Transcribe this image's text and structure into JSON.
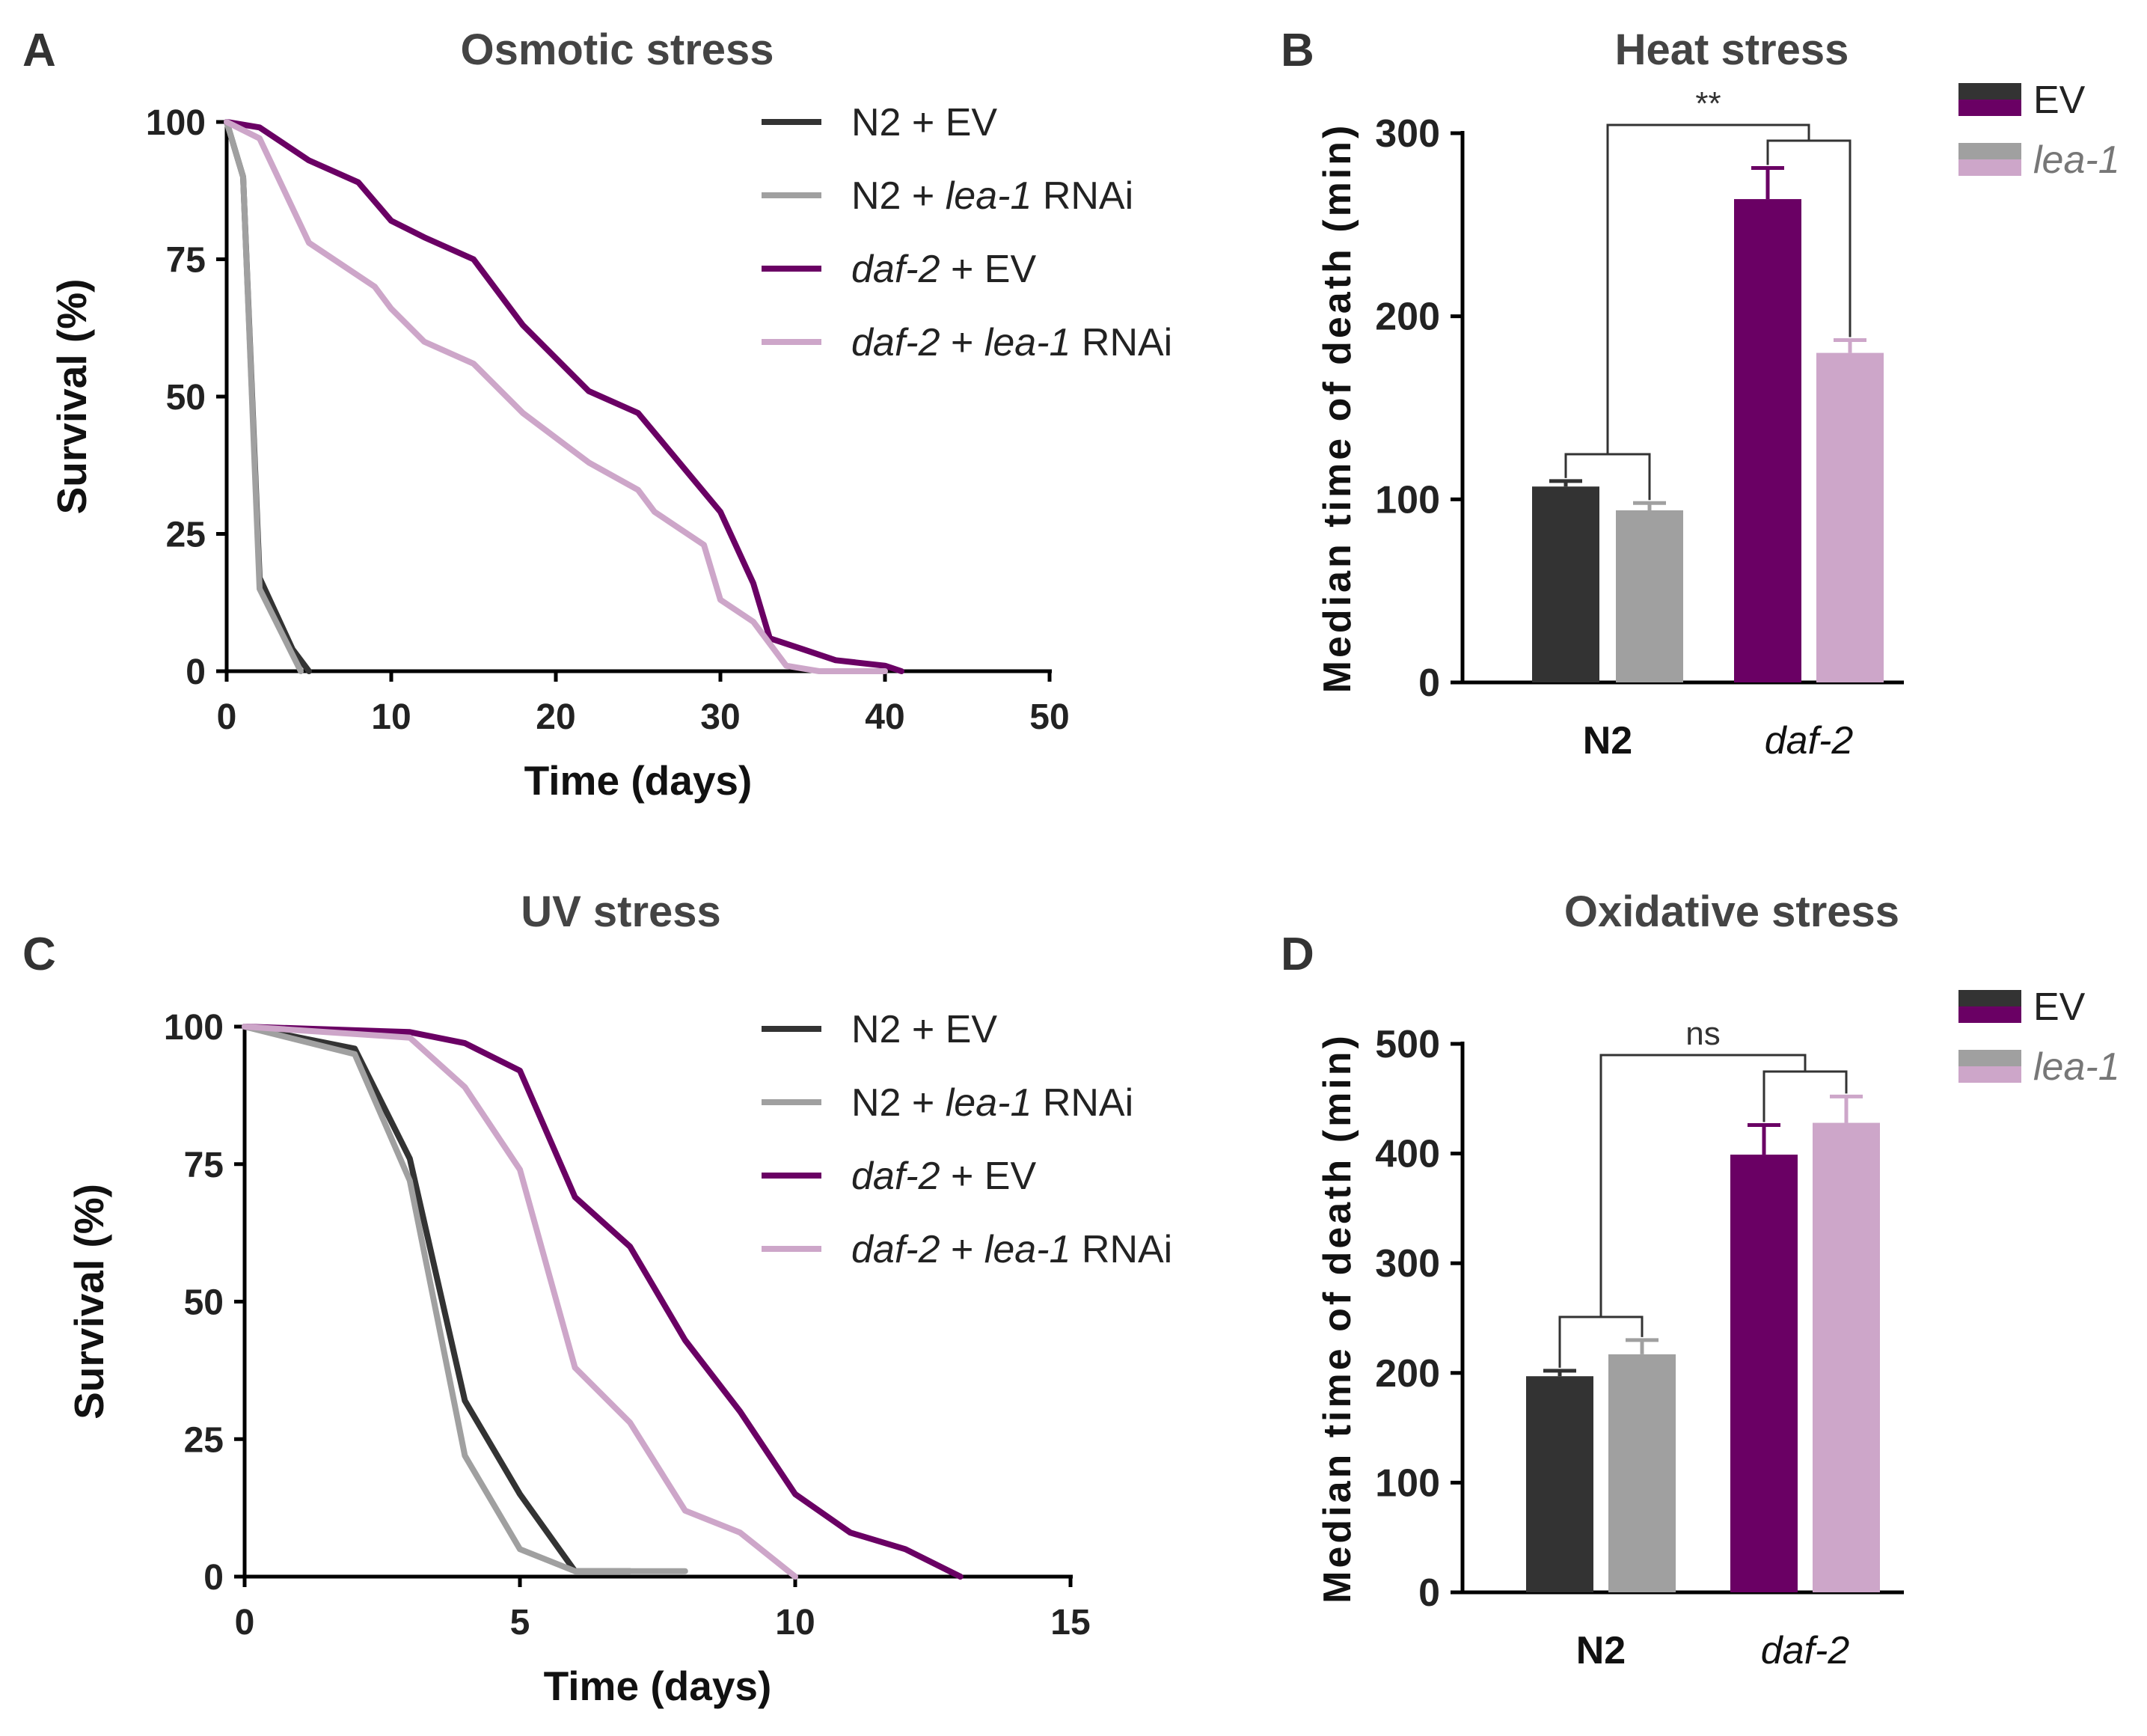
{
  "colors": {
    "n2_ev": "#333333",
    "n2_lea1": "#a0a0a0",
    "daf2_ev": "#6a0064",
    "daf2_lea1": "#cda6c9"
  },
  "panels": {
    "A": {
      "letter": "A",
      "chart_data": {
        "type": "line",
        "title": "Osmotic stress",
        "xlabel": "Time (days)",
        "ylabel": "Survival (%)",
        "xlim": [
          0,
          50
        ],
        "ylim": [
          0,
          100
        ],
        "xticks": [
          "0",
          "10",
          "20",
          "30",
          "40",
          "50"
        ],
        "yticks": [
          "0",
          "25",
          "50",
          "75",
          "100"
        ],
        "legend": [
          {
            "prefix": "N2 + EV",
            "italic": "",
            "suffix": "",
            "color_key": "n2_ev"
          },
          {
            "prefix": "N2 + ",
            "italic": "lea-1",
            "suffix": " RNAi",
            "color_key": "n2_lea1"
          },
          {
            "prefix": "",
            "italic": "daf-2",
            "suffix": " + EV",
            "color_key": "daf2_ev"
          },
          {
            "prefix": "",
            "italic": "daf-2",
            "suffix": " + lea-1 RNAi",
            "color_key": "daf2_lea1"
          }
        ],
        "series": [
          {
            "name": "N2 + EV",
            "color_key": "n2_ev",
            "x": [
              0,
              1,
              2,
              4,
              5
            ],
            "y": [
              100,
              90,
              17,
              4,
              0
            ]
          },
          {
            "name": "N2 + lea-1 RNAi",
            "color_key": "n2_lea1",
            "x": [
              0,
              1,
              2,
              4,
              4.5
            ],
            "y": [
              100,
              90,
              15,
              3,
              0
            ]
          },
          {
            "name": "daf-2 + EV",
            "color_key": "daf2_ev",
            "x": [
              0,
              2,
              5,
              8,
              10,
              12,
              15,
              18,
              22,
              25,
              30,
              32,
              33,
              35,
              37,
              40,
              41
            ],
            "y": [
              100,
              99,
              93,
              89,
              82,
              79,
              75,
              63,
              51,
              47,
              29,
              16,
              6,
              4,
              2,
              1,
              0
            ]
          },
          {
            "name": "daf-2 + lea-1 RNAi",
            "color_key": "daf2_lea1",
            "x": [
              0,
              2,
              5,
              9,
              10,
              12,
              15,
              18,
              22,
              25,
              26,
              29,
              30,
              32,
              34,
              36,
              40
            ],
            "y": [
              100,
              97,
              78,
              70,
              66,
              60,
              56,
              47,
              38,
              33,
              29,
              23,
              13,
              9,
              1,
              0,
              0
            ]
          }
        ]
      }
    },
    "B": {
      "letter": "B",
      "chart_data": {
        "type": "bar",
        "title": "Heat stress",
        "ylabel": "Median time of death (min)",
        "ylim": [
          0,
          300
        ],
        "yticks": [
          "0",
          "100",
          "200",
          "300"
        ],
        "categories": [
          "N2",
          "daf-2"
        ],
        "legend": [
          {
            "label": "EV",
            "italic": false,
            "color_keys": [
              "n2_ev",
              "daf2_ev"
            ]
          },
          {
            "label": "lea-1",
            "italic": true,
            "color_keys": [
              "n2_lea1",
              "daf2_lea1"
            ]
          }
        ],
        "series": [
          {
            "name": "EV",
            "values": [
              107,
              264
            ],
            "errors": [
              3,
              17
            ],
            "color_keys": [
              "n2_ev",
              "daf2_ev"
            ]
          },
          {
            "name": "lea-1",
            "values": [
              94,
              180
            ],
            "errors": [
              4,
              7
            ],
            "color_keys": [
              "n2_lea1",
              "daf2_lea1"
            ]
          }
        ],
        "significance": "**"
      }
    },
    "C": {
      "letter": "C",
      "chart_data": {
        "type": "line",
        "title": "UV stress",
        "xlabel": "Time (days)",
        "ylabel": "Survival (%)",
        "xlim": [
          0,
          15
        ],
        "ylim": [
          0,
          100
        ],
        "xticks": [
          "0",
          "5",
          "10",
          "15"
        ],
        "yticks": [
          "0",
          "25",
          "50",
          "75",
          "100"
        ],
        "legend": [
          {
            "prefix": "N2 + EV",
            "italic": "",
            "suffix": "",
            "color_key": "n2_ev"
          },
          {
            "prefix": "N2 + ",
            "italic": "lea-1",
            "suffix": " RNAi",
            "color_key": "n2_lea1"
          },
          {
            "prefix": "",
            "italic": "daf-2",
            "suffix": " + EV",
            "color_key": "daf2_ev"
          },
          {
            "prefix": "",
            "italic": "daf-2",
            "suffix": " + lea-1 RNAi",
            "color_key": "daf2_lea1"
          }
        ],
        "series": [
          {
            "name": "N2 + EV",
            "color_key": "n2_ev",
            "x": [
              0,
              2,
              3,
              4,
              5,
              6,
              7
            ],
            "y": [
              100,
              96,
              76,
              32,
              15,
              1,
              1
            ]
          },
          {
            "name": "N2 + lea-1 RNAi",
            "color_key": "n2_lea1",
            "x": [
              0,
              2,
              3,
              4,
              5,
              6,
              7,
              8
            ],
            "y": [
              100,
              95,
              72,
              22,
              5,
              1,
              1,
              1
            ]
          },
          {
            "name": "daf-2 + EV",
            "color_key": "daf2_ev",
            "x": [
              0,
              3,
              4,
              5,
              6,
              7,
              8,
              9,
              10,
              11,
              12,
              13
            ],
            "y": [
              100,
              99,
              97,
              92,
              69,
              60,
              43,
              30,
              15,
              8,
              5,
              0
            ]
          },
          {
            "name": "daf-2 + lea-1 RNAi",
            "color_key": "daf2_lea1",
            "x": [
              0,
              3,
              4,
              5,
              6,
              7,
              8,
              9,
              10
            ],
            "y": [
              100,
              98,
              89,
              74,
              38,
              28,
              12,
              8,
              0
            ]
          }
        ]
      }
    },
    "D": {
      "letter": "D",
      "chart_data": {
        "type": "bar",
        "title": "Oxidative stress",
        "ylabel": "Median time of death (min)",
        "ylim": [
          0,
          500
        ],
        "yticks": [
          "0",
          "100",
          "200",
          "300",
          "400",
          "500"
        ],
        "categories": [
          "N2",
          "daf-2"
        ],
        "legend": [
          {
            "label": "EV",
            "italic": false,
            "color_keys": [
              "n2_ev",
              "daf2_ev"
            ]
          },
          {
            "label": "lea-1",
            "italic": true,
            "color_keys": [
              "n2_lea1",
              "daf2_lea1"
            ]
          }
        ],
        "series": [
          {
            "name": "EV",
            "values": [
              197,
              399
            ],
            "errors": [
              5,
              27
            ],
            "color_keys": [
              "n2_ev",
              "daf2_ev"
            ]
          },
          {
            "name": "lea-1",
            "values": [
              217,
              428
            ],
            "errors": [
              13,
              24
            ],
            "color_keys": [
              "n2_lea1",
              "daf2_lea1"
            ]
          }
        ],
        "significance": "ns"
      }
    }
  }
}
